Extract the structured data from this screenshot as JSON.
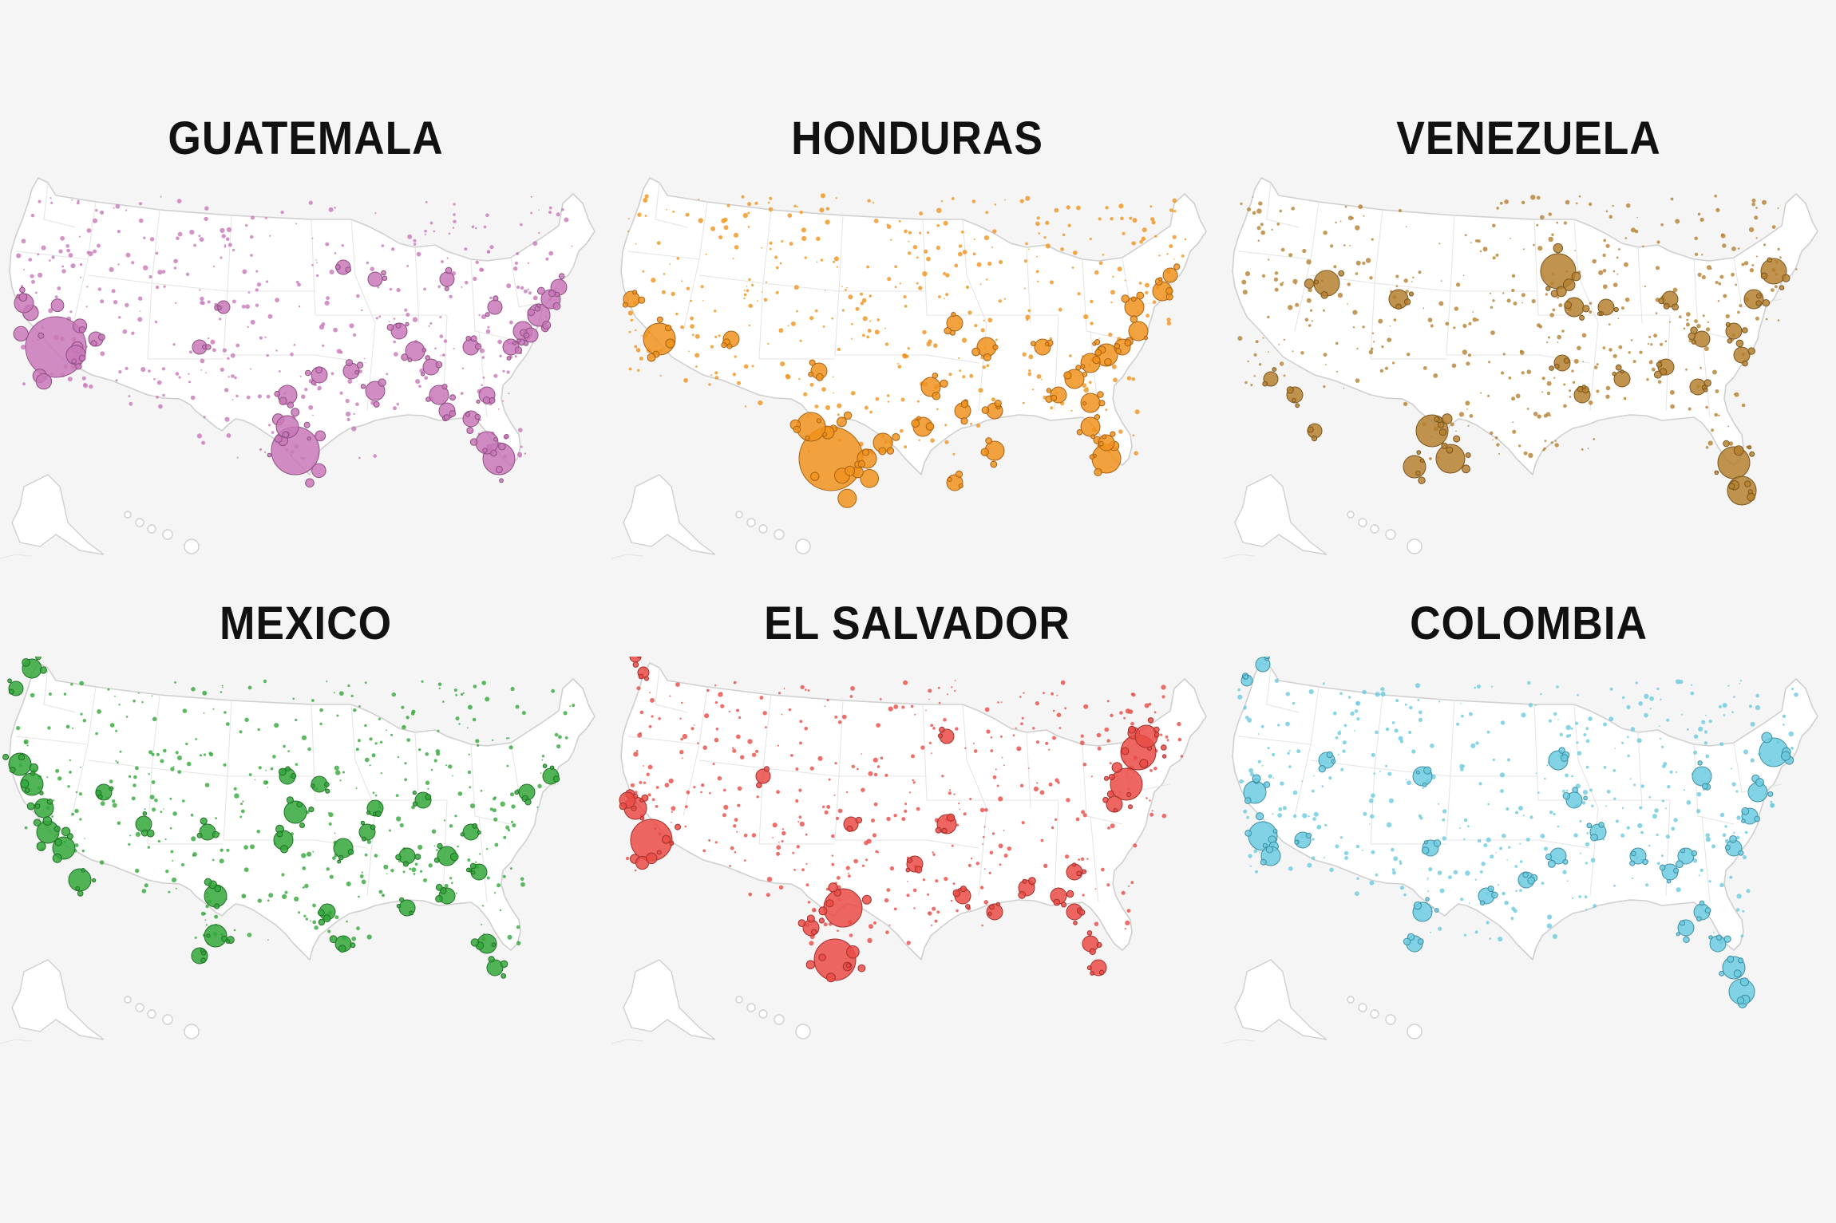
{
  "panels": [
    {
      "id": "guatemala",
      "title": "GUATEMALA",
      "color": "#c978b9",
      "stroke": "#8e4f82"
    },
    {
      "id": "honduras",
      "title": "HONDURAS",
      "color": "#f0921d",
      "stroke": "#a86314"
    },
    {
      "id": "venezuela",
      "title": "VENEZUELA",
      "color": "#b5802f",
      "stroke": "#7a5620"
    },
    {
      "id": "mexico",
      "title": "MEXICO",
      "color": "#33a83b",
      "stroke": "#227028"
    },
    {
      "id": "el-salvador",
      "title": "EL SALVADOR",
      "color": "#ea4b45",
      "stroke": "#a3302c"
    },
    {
      "id": "colombia",
      "title": "COLOMBIA",
      "color": "#6ccbe0",
      "stroke": "#3f8fa3"
    }
  ]
}
